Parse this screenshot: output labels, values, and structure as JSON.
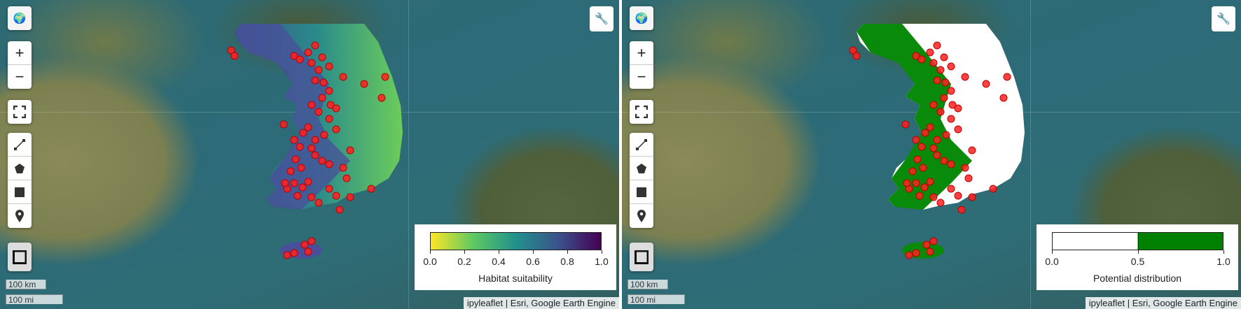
{
  "maps": [
    {
      "legend": {
        "title": "Habitat suitability",
        "ticks": [
          "0.0",
          "0.2",
          "0.4",
          "0.6",
          "0.8",
          "1.0"
        ],
        "colormap": [
          "#fde725",
          "#5ec962",
          "#21918c",
          "#3b528b",
          "#440154"
        ]
      },
      "layer": "habitat-suitability-raster"
    },
    {
      "legend": {
        "title": "Potential distribution",
        "ticks": [
          "0.0",
          "0.5",
          "1.0"
        ],
        "colors": [
          "#ffffff",
          "#008000"
        ]
      },
      "layer": "potential-distribution-raster"
    }
  ],
  "controls": {
    "zoom_in": "+",
    "zoom_out": "−",
    "globe_icon": "globe-icon",
    "fullscreen_icon": "fullscreen-icon",
    "polyline_icon": "polyline-icon",
    "polygon_icon": "polygon-icon",
    "rectangle_icon": "rectangle-icon",
    "marker_icon": "marker-icon",
    "measure_icon": "measure-icon",
    "wrench_icon": "wrench-icon"
  },
  "scale": {
    "km": "100 km",
    "mi": "100 mi"
  },
  "attribution": "ipyleaflet | Esri, Google Earth Engine",
  "occurrence_color": "#ff2020"
}
